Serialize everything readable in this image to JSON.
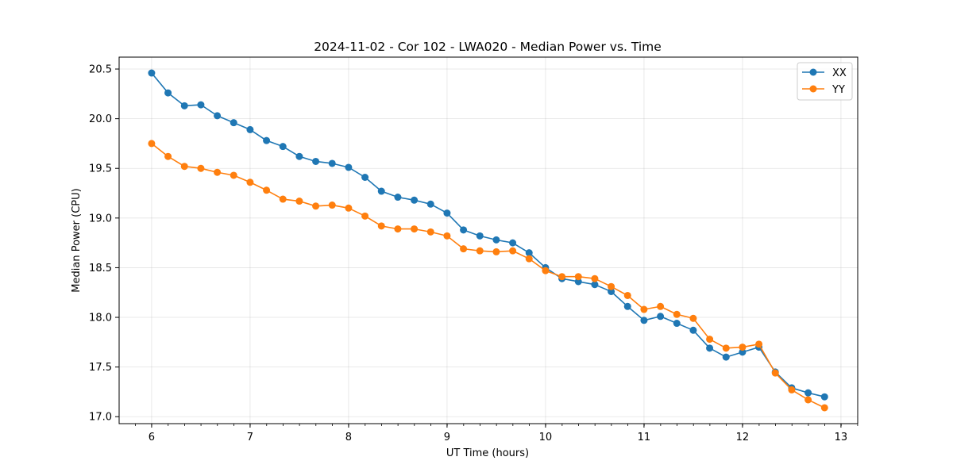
{
  "chart_data": {
    "type": "line",
    "title": "2024-11-02 - Cor 102 - LWA020 - Median Power vs. Time",
    "xlabel": "UT Time (hours)",
    "ylabel": "Median Power (CPU)",
    "xlim": [
      5.67,
      13.17
    ],
    "ylim": [
      16.93,
      20.62
    ],
    "grid": true,
    "legend_position": "top-right",
    "x_ticks": [
      6,
      7,
      8,
      9,
      10,
      11,
      12,
      13
    ],
    "x_tick_labels": [
      "6",
      "7",
      "8",
      "9",
      "10",
      "11",
      "12",
      "13"
    ],
    "x_minor_step": 0.1667,
    "y_ticks": [
      17.0,
      17.5,
      18.0,
      18.5,
      19.0,
      19.5,
      20.0,
      20.5
    ],
    "y_tick_labels": [
      "17.0",
      "17.5",
      "18.0",
      "18.5",
      "19.0",
      "19.5",
      "20.0",
      "20.5"
    ],
    "x": [
      6.0,
      6.1667,
      6.3333,
      6.5,
      6.6667,
      6.8333,
      7.0,
      7.1667,
      7.3333,
      7.5,
      7.6667,
      7.8333,
      8.0,
      8.1667,
      8.3333,
      8.5,
      8.6667,
      8.8333,
      9.0,
      9.1667,
      9.3333,
      9.5,
      9.6667,
      9.8333,
      10.0,
      10.1667,
      10.3333,
      10.5,
      10.6667,
      10.8333,
      11.0,
      11.1667,
      11.3333,
      11.5,
      11.6667,
      11.8333,
      12.0,
      12.1667,
      12.3333,
      12.5,
      12.6667,
      12.8333
    ],
    "series": [
      {
        "name": "XX",
        "color": "#1f77b4",
        "values": [
          20.46,
          20.26,
          20.13,
          20.14,
          20.03,
          19.96,
          19.89,
          19.78,
          19.72,
          19.62,
          19.57,
          19.55,
          19.51,
          19.41,
          19.27,
          19.21,
          19.18,
          19.14,
          19.05,
          18.88,
          18.82,
          18.78,
          18.75,
          18.65,
          18.5,
          18.39,
          18.36,
          18.33,
          18.26,
          18.11,
          17.97,
          18.01,
          17.94,
          17.87,
          17.69,
          17.6,
          17.65,
          17.7,
          17.45,
          17.29,
          17.24,
          17.2
        ]
      },
      {
        "name": "YY",
        "color": "#ff7f0e",
        "values": [
          19.75,
          19.62,
          19.52,
          19.5,
          19.46,
          19.43,
          19.36,
          19.28,
          19.19,
          19.17,
          19.12,
          19.13,
          19.1,
          19.02,
          18.92,
          18.89,
          18.89,
          18.86,
          18.82,
          18.69,
          18.67,
          18.66,
          18.67,
          18.59,
          18.47,
          18.41,
          18.41,
          18.39,
          18.31,
          18.22,
          18.08,
          18.11,
          18.03,
          17.99,
          17.78,
          17.69,
          17.7,
          17.73,
          17.44,
          17.27,
          17.17,
          17.09
        ]
      }
    ]
  }
}
